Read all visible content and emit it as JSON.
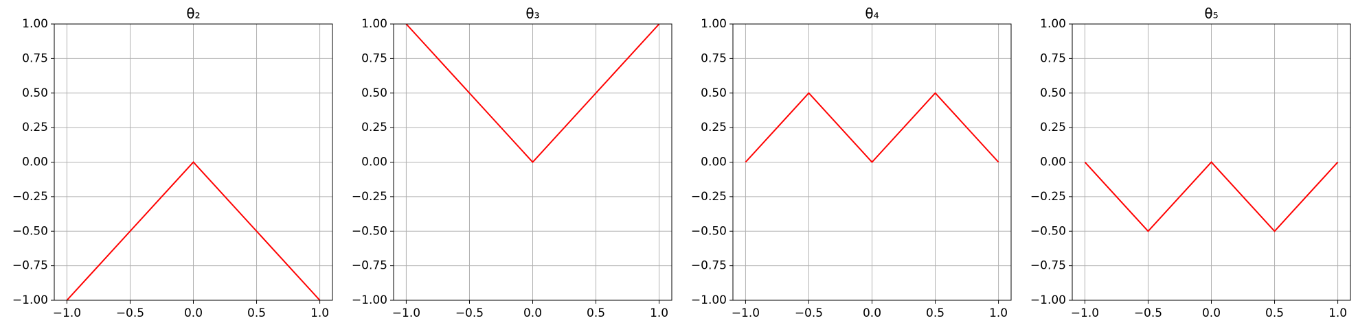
{
  "chart_data": [
    {
      "type": "line",
      "title": "θ₂",
      "x": [
        -1,
        -0.5,
        0,
        0.5,
        1
      ],
      "series": [
        {
          "color": "#ff0000",
          "values": [
            -1,
            -0.5,
            0,
            -0.5,
            -1
          ]
        }
      ],
      "xlim": [
        -1.1,
        1.1
      ],
      "ylim": [
        -1,
        1
      ],
      "xticks": [
        {
          "value": -1,
          "label": "−1.0"
        },
        {
          "value": -0.5,
          "label": "−0.5"
        },
        {
          "value": 0,
          "label": "0.0"
        },
        {
          "value": 0.5,
          "label": "0.5"
        },
        {
          "value": 1,
          "label": "1.0"
        }
      ],
      "yticks": [
        {
          "value": -1,
          "label": "−1.00"
        },
        {
          "value": -0.75,
          "label": "−0.75"
        },
        {
          "value": -0.5,
          "label": "−0.50"
        },
        {
          "value": -0.25,
          "label": "−0.25"
        },
        {
          "value": 0,
          "label": "0.00"
        },
        {
          "value": 0.25,
          "label": "0.25"
        },
        {
          "value": 0.5,
          "label": "0.50"
        },
        {
          "value": 0.75,
          "label": "0.75"
        },
        {
          "value": 1,
          "label": "1.00"
        }
      ],
      "grid": true
    },
    {
      "type": "line",
      "title": "θ₃",
      "x": [
        -1,
        -0.5,
        0,
        0.5,
        1
      ],
      "series": [
        {
          "color": "#ff0000",
          "values": [
            1,
            0.5,
            0,
            0.5,
            1
          ]
        }
      ],
      "xlim": [
        -1.1,
        1.1
      ],
      "ylim": [
        -1,
        1
      ],
      "xticks": [
        {
          "value": -1,
          "label": "−1.0"
        },
        {
          "value": -0.5,
          "label": "−0.5"
        },
        {
          "value": 0,
          "label": "0.0"
        },
        {
          "value": 0.5,
          "label": "0.5"
        },
        {
          "value": 1,
          "label": "1.0"
        }
      ],
      "yticks": [
        {
          "value": -1,
          "label": "−1.00"
        },
        {
          "value": -0.75,
          "label": "−0.75"
        },
        {
          "value": -0.5,
          "label": "−0.50"
        },
        {
          "value": -0.25,
          "label": "−0.25"
        },
        {
          "value": 0,
          "label": "0.00"
        },
        {
          "value": 0.25,
          "label": "0.25"
        },
        {
          "value": 0.5,
          "label": "0.50"
        },
        {
          "value": 0.75,
          "label": "0.75"
        },
        {
          "value": 1,
          "label": "1.00"
        }
      ],
      "grid": true
    },
    {
      "type": "line",
      "title": "θ₄",
      "x": [
        -1,
        -0.5,
        0,
        0.5,
        1
      ],
      "series": [
        {
          "color": "#ff0000",
          "values": [
            0,
            0.5,
            0,
            0.5,
            0
          ]
        }
      ],
      "xlim": [
        -1.1,
        1.1
      ],
      "ylim": [
        -1,
        1
      ],
      "xticks": [
        {
          "value": -1,
          "label": "−1.0"
        },
        {
          "value": -0.5,
          "label": "−0.5"
        },
        {
          "value": 0,
          "label": "0.0"
        },
        {
          "value": 0.5,
          "label": "0.5"
        },
        {
          "value": 1,
          "label": "1.0"
        }
      ],
      "yticks": [
        {
          "value": -1,
          "label": "−1.00"
        },
        {
          "value": -0.75,
          "label": "−0.75"
        },
        {
          "value": -0.5,
          "label": "−0.50"
        },
        {
          "value": -0.25,
          "label": "−0.25"
        },
        {
          "value": 0,
          "label": "0.00"
        },
        {
          "value": 0.25,
          "label": "0.25"
        },
        {
          "value": 0.5,
          "label": "0.50"
        },
        {
          "value": 0.75,
          "label": "0.75"
        },
        {
          "value": 1,
          "label": "1.00"
        }
      ],
      "grid": true
    },
    {
      "type": "line",
      "title": "θ₅",
      "x": [
        -1,
        -0.5,
        0,
        0.5,
        1
      ],
      "series": [
        {
          "color": "#ff0000",
          "values": [
            0,
            -0.5,
            0,
            -0.5,
            0
          ]
        }
      ],
      "xlim": [
        -1.1,
        1.1
      ],
      "ylim": [
        -1,
        1
      ],
      "xticks": [
        {
          "value": -1,
          "label": "−1.0"
        },
        {
          "value": -0.5,
          "label": "−0.5"
        },
        {
          "value": 0,
          "label": "0.0"
        },
        {
          "value": 0.5,
          "label": "0.5"
        },
        {
          "value": 1,
          "label": "1.0"
        }
      ],
      "yticks": [
        {
          "value": -1,
          "label": "−1.00"
        },
        {
          "value": -0.75,
          "label": "−0.75"
        },
        {
          "value": -0.5,
          "label": "−0.50"
        },
        {
          "value": -0.25,
          "label": "−0.25"
        },
        {
          "value": 0,
          "label": "0.00"
        },
        {
          "value": 0.25,
          "label": "0.25"
        },
        {
          "value": 0.5,
          "label": "0.50"
        },
        {
          "value": 0.75,
          "label": "0.75"
        },
        {
          "value": 1,
          "label": "1.00"
        }
      ],
      "grid": true
    }
  ]
}
